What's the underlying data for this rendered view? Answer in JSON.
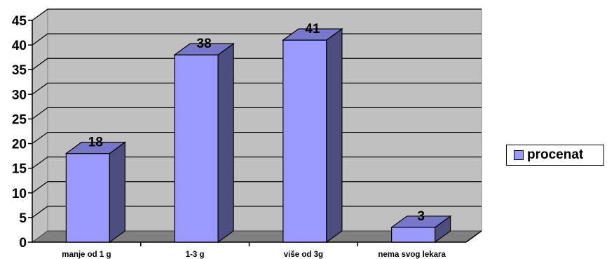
{
  "chart_data": {
    "type": "bar",
    "categories": [
      "manje od 1 g",
      "1-3 g",
      "više od 3g",
      "nema svog lekara"
    ],
    "series": [
      {
        "name": "procenat",
        "values": [
          18,
          38,
          41,
          3
        ]
      }
    ],
    "data_labels": [
      "18",
      "38",
      "41",
      "3"
    ],
    "ylim": [
      0,
      45
    ],
    "yticks": [
      "0",
      "5",
      "10",
      "15",
      "20",
      "25",
      "30",
      "35",
      "40",
      "45"
    ],
    "grid": true,
    "legend_position": "right",
    "style": "3d-column",
    "colors": {
      "bar_front": "#9999ff",
      "bar_side": "#4d4d80",
      "bar_top": "#7777cc",
      "wall": "#c0c0c0",
      "floor": "#808080"
    }
  },
  "legend": {
    "label": "procenat",
    "icon": "legend-swatch-icon"
  }
}
